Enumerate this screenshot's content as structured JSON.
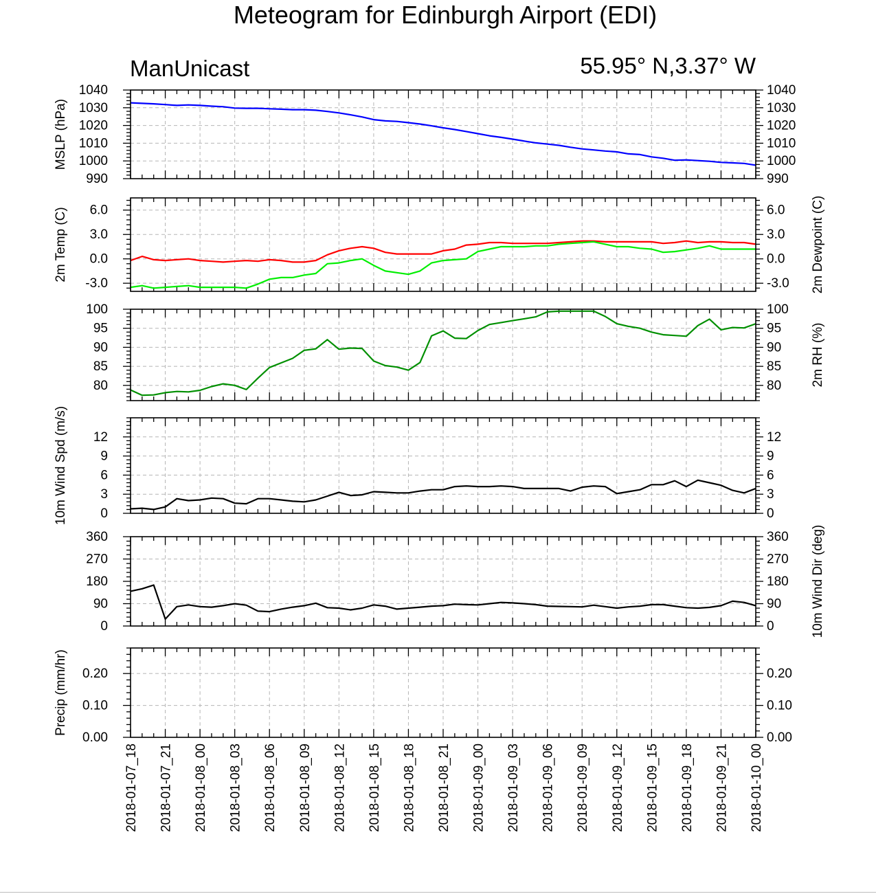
{
  "title": "Meteogram for Edinburgh Airport (EDI)",
  "model_label": "ManUnicast",
  "location_label": "55.95° N,3.37° W",
  "chart_data": [
    {
      "id": "mslp",
      "type": "line",
      "ylabel": "MSLP (hPa)",
      "ylabel_right": "",
      "ylim": [
        990,
        1040
      ],
      "yticks": [
        990,
        1000,
        1010,
        1020,
        1030,
        1040
      ],
      "tick_labels_left": [
        "990",
        "1000",
        "1010",
        "1020",
        "1030",
        "1040"
      ],
      "tick_labels_right": [
        "990",
        "1000",
        "1010",
        "1020",
        "1030",
        "1040"
      ],
      "grid": true,
      "series": [
        {
          "color": "#0000ff",
          "values": [
            1032.8,
            1032.5,
            1032.2,
            1031.8,
            1031.3,
            1031.6,
            1031.3,
            1030.9,
            1030.6,
            1029.8,
            1029.7,
            1029.7,
            1029.4,
            1029.2,
            1028.9,
            1028.9,
            1028.6,
            1027.9,
            1027.1,
            1026.0,
            1024.8,
            1023.3,
            1022.6,
            1022.3,
            1021.6,
            1020.8,
            1019.8,
            1018.7,
            1017.7,
            1016.6,
            1015.4,
            1014.2,
            1013.3,
            1012.3,
            1011.2,
            1010.2,
            1009.5,
            1008.8,
            1007.7,
            1006.8,
            1006.2,
            1005.6,
            1005.1,
            1004.0,
            1003.6,
            1002.3,
            1001.5,
            1000.4,
            1000.6,
            1000.2,
            999.8,
            999.2,
            998.9,
            998.6,
            997.6
          ]
        }
      ]
    },
    {
      "id": "temp",
      "type": "line",
      "ylabel": "2m Temp (C)",
      "ylabel_right": "2m Dewpoint (C)",
      "ylim": [
        -4.0,
        7.5
      ],
      "yticks": [
        -3,
        0,
        3,
        6
      ],
      "tick_labels_left": [
        "-3.0",
        "0.0",
        "3.0",
        "6.0"
      ],
      "tick_labels_right": [
        "-3.0",
        "0.0",
        "3.0",
        "6.0"
      ],
      "grid": true,
      "series": [
        {
          "name": "2m Temp",
          "color": "#ff0000",
          "values": [
            -0.2,
            0.3,
            -0.1,
            -0.2,
            -0.1,
            0.0,
            -0.2,
            -0.3,
            -0.4,
            -0.3,
            -0.2,
            -0.3,
            -0.1,
            -0.2,
            -0.4,
            -0.4,
            -0.2,
            0.5,
            1.0,
            1.3,
            1.5,
            1.3,
            0.8,
            0.6,
            0.6,
            0.6,
            0.6,
            1.0,
            1.2,
            1.7,
            1.8,
            2.0,
            2.0,
            1.9,
            1.9,
            1.9,
            1.9,
            2.0,
            2.1,
            2.2,
            2.2,
            2.1,
            2.1,
            2.1,
            2.1,
            2.1,
            1.9,
            2.0,
            2.2,
            2.0,
            2.1,
            2.1,
            2.0,
            2.0,
            1.8
          ]
        },
        {
          "name": "2m Dewpoint",
          "color": "#00ee00",
          "values": [
            -3.5,
            -3.3,
            -3.6,
            -3.5,
            -3.4,
            -3.3,
            -3.5,
            -3.5,
            -3.5,
            -3.5,
            -3.6,
            -3.1,
            -2.5,
            -2.3,
            -2.3,
            -2.0,
            -1.8,
            -0.6,
            -0.5,
            -0.2,
            0.0,
            -0.8,
            -1.5,
            -1.7,
            -1.9,
            -1.5,
            -0.5,
            -0.2,
            -0.1,
            0.0,
            0.9,
            1.2,
            1.5,
            1.5,
            1.5,
            1.6,
            1.6,
            1.8,
            1.9,
            2.0,
            2.1,
            1.8,
            1.5,
            1.5,
            1.3,
            1.2,
            0.8,
            0.9,
            1.1,
            1.3,
            1.6,
            1.2,
            1.2,
            1.2,
            1.2
          ]
        }
      ]
    },
    {
      "id": "rh",
      "type": "line",
      "ylabel": "",
      "ylabel_right": "2m RH (%)",
      "ylim": [
        76,
        100
      ],
      "yticks": [
        80,
        85,
        90,
        95,
        100
      ],
      "tick_labels_left": [
        "80",
        "85",
        "90",
        "95",
        "100"
      ],
      "tick_labels_right": [
        "80",
        "85",
        "90",
        "95",
        "100"
      ],
      "grid": true,
      "series": [
        {
          "color": "#008f00",
          "values": [
            78.8,
            77.4,
            77.5,
            78.1,
            78.4,
            78.3,
            78.7,
            79.7,
            80.4,
            80.0,
            78.9,
            81.9,
            84.7,
            85.9,
            87.1,
            89.2,
            89.6,
            92.0,
            89.5,
            89.8,
            89.7,
            86.4,
            85.2,
            84.8,
            84.0,
            86.0,
            93.0,
            94.3,
            92.4,
            92.3,
            94.4,
            96.0,
            96.5,
            97.0,
            97.5,
            98.0,
            99.3,
            99.5,
            99.5,
            99.5,
            99.5,
            98.1,
            96.2,
            95.5,
            95.0,
            94.0,
            93.3,
            93.1,
            92.9,
            95.7,
            97.4,
            94.6,
            95.2,
            95.1,
            96.2
          ]
        }
      ]
    },
    {
      "id": "wspd",
      "type": "line",
      "ylabel": "10m Wind Spd (m/s)",
      "ylabel_right": "",
      "ylim": [
        0,
        15
      ],
      "yticks": [
        0,
        3,
        6,
        9,
        12
      ],
      "tick_labels_left": [
        "0",
        "3",
        "6",
        "9",
        "12"
      ],
      "tick_labels_right": [
        "0",
        "3",
        "6",
        "9",
        "12"
      ],
      "grid": true,
      "series": [
        {
          "color": "#000000",
          "values": [
            0.7,
            0.8,
            0.6,
            1.0,
            2.3,
            2.0,
            2.1,
            2.4,
            2.3,
            1.6,
            1.5,
            2.3,
            2.3,
            2.1,
            1.9,
            1.8,
            2.1,
            2.7,
            3.3,
            2.8,
            2.9,
            3.4,
            3.3,
            3.2,
            3.2,
            3.5,
            3.7,
            3.7,
            4.2,
            4.3,
            4.2,
            4.2,
            4.3,
            4.2,
            3.9,
            3.9,
            3.9,
            3.9,
            3.5,
            4.1,
            4.3,
            4.2,
            3.1,
            3.4,
            3.7,
            4.5,
            4.5,
            5.1,
            4.2,
            5.2,
            4.8,
            4.4,
            3.6,
            3.2,
            3.9
          ]
        }
      ]
    },
    {
      "id": "wdir",
      "type": "line",
      "ylabel": "",
      "ylabel_right": "10m Wind Dir (deg)",
      "ylim": [
        0,
        360
      ],
      "yticks": [
        0,
        90,
        180,
        270,
        360
      ],
      "tick_labels_left": [
        "0",
        "90",
        "180",
        "270",
        "360"
      ],
      "tick_labels_right": [
        "0",
        "90",
        "180",
        "270",
        "360"
      ],
      "grid": true,
      "series": [
        {
          "color": "#000000",
          "values": [
            140,
            150,
            165,
            28,
            78,
            85,
            78,
            76,
            82,
            90,
            84,
            60,
            58,
            68,
            76,
            82,
            92,
            74,
            72,
            65,
            72,
            85,
            80,
            68,
            72,
            76,
            80,
            82,
            88,
            86,
            85,
            90,
            95,
            93,
            90,
            86,
            80,
            79,
            78,
            77,
            84,
            78,
            72,
            77,
            80,
            86,
            86,
            80,
            74,
            72,
            75,
            82,
            100,
            95,
            82
          ]
        }
      ]
    },
    {
      "id": "precip",
      "type": "line",
      "ylabel": "Precip (mm/hr)",
      "ylabel_right": "",
      "ylim": [
        0,
        0.28
      ],
      "yticks": [
        0,
        0.1,
        0.2
      ],
      "tick_labels_left": [
        "0.00",
        "0.10",
        "0.20"
      ],
      "tick_labels_right": [
        "0.00",
        "0.10",
        "0.20"
      ],
      "grid": true,
      "series": []
    }
  ],
  "x_axis": {
    "n_hours": 55,
    "labels": [
      "2018-01-07_18",
      "2018-01-07_21",
      "2018-01-08_00",
      "2018-01-08_03",
      "2018-01-08_06",
      "2018-01-08_09",
      "2018-01-08_12",
      "2018-01-08_15",
      "2018-01-08_18",
      "2018-01-08_21",
      "2018-01-09_00",
      "2018-01-09_03",
      "2018-01-09_06",
      "2018-01-09_09",
      "2018-01-09_12",
      "2018-01-09_15",
      "2018-01-09_18",
      "2018-01-09_21",
      "2018-01-10_00"
    ]
  }
}
